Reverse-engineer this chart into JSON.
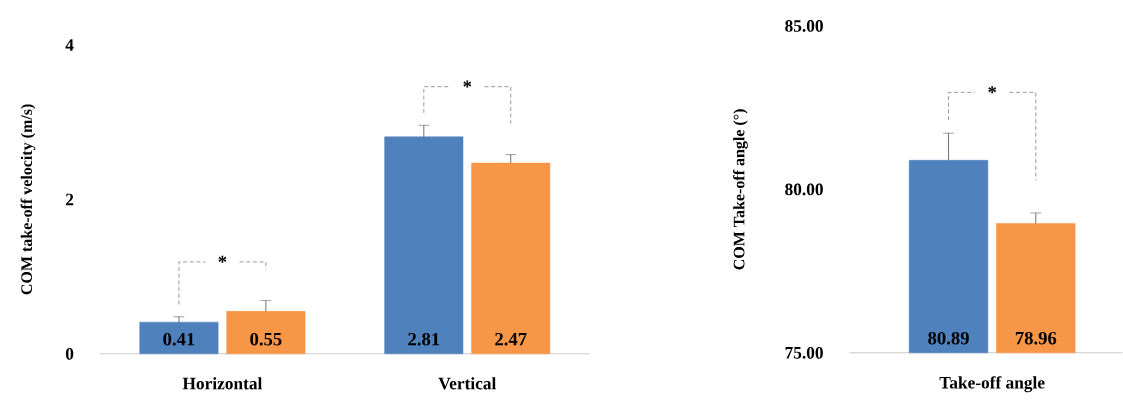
{
  "chart_data": [
    {
      "type": "bar",
      "ylabel": "COM take-off velocity (m/s)",
      "categories": [
        "Horizontal",
        "Vertical"
      ],
      "series": [
        {
          "color": "#4f81bd",
          "values": [
            0.41,
            2.81
          ],
          "errors": [
            0.07,
            0.15
          ]
        },
        {
          "color": "#f79646",
          "values": [
            0.55,
            2.47
          ],
          "errors": [
            0.14,
            0.11
          ]
        }
      ],
      "ylim": [
        0,
        4
      ],
      "yticks": [
        0,
        2,
        4
      ],
      "data_labels": true,
      "annotations": [
        "*",
        "*"
      ]
    },
    {
      "type": "bar",
      "ylabel": "COM Take-off angle (°)",
      "categories": [
        "Take-off angle"
      ],
      "series": [
        {
          "color": "#4f81bd",
          "values": [
            80.89
          ],
          "errors": [
            0.83
          ]
        },
        {
          "color": "#f79646",
          "values": [
            78.96
          ],
          "errors": [
            0.32
          ]
        }
      ],
      "ylim": [
        75,
        85
      ],
      "yticks": [
        {
          "value": 75,
          "label": "75.00"
        },
        {
          "value": 80,
          "label": "80.00"
        },
        {
          "value": 85,
          "label": "85.00"
        }
      ],
      "data_labels": true,
      "annotations": [
        "*"
      ]
    }
  ]
}
